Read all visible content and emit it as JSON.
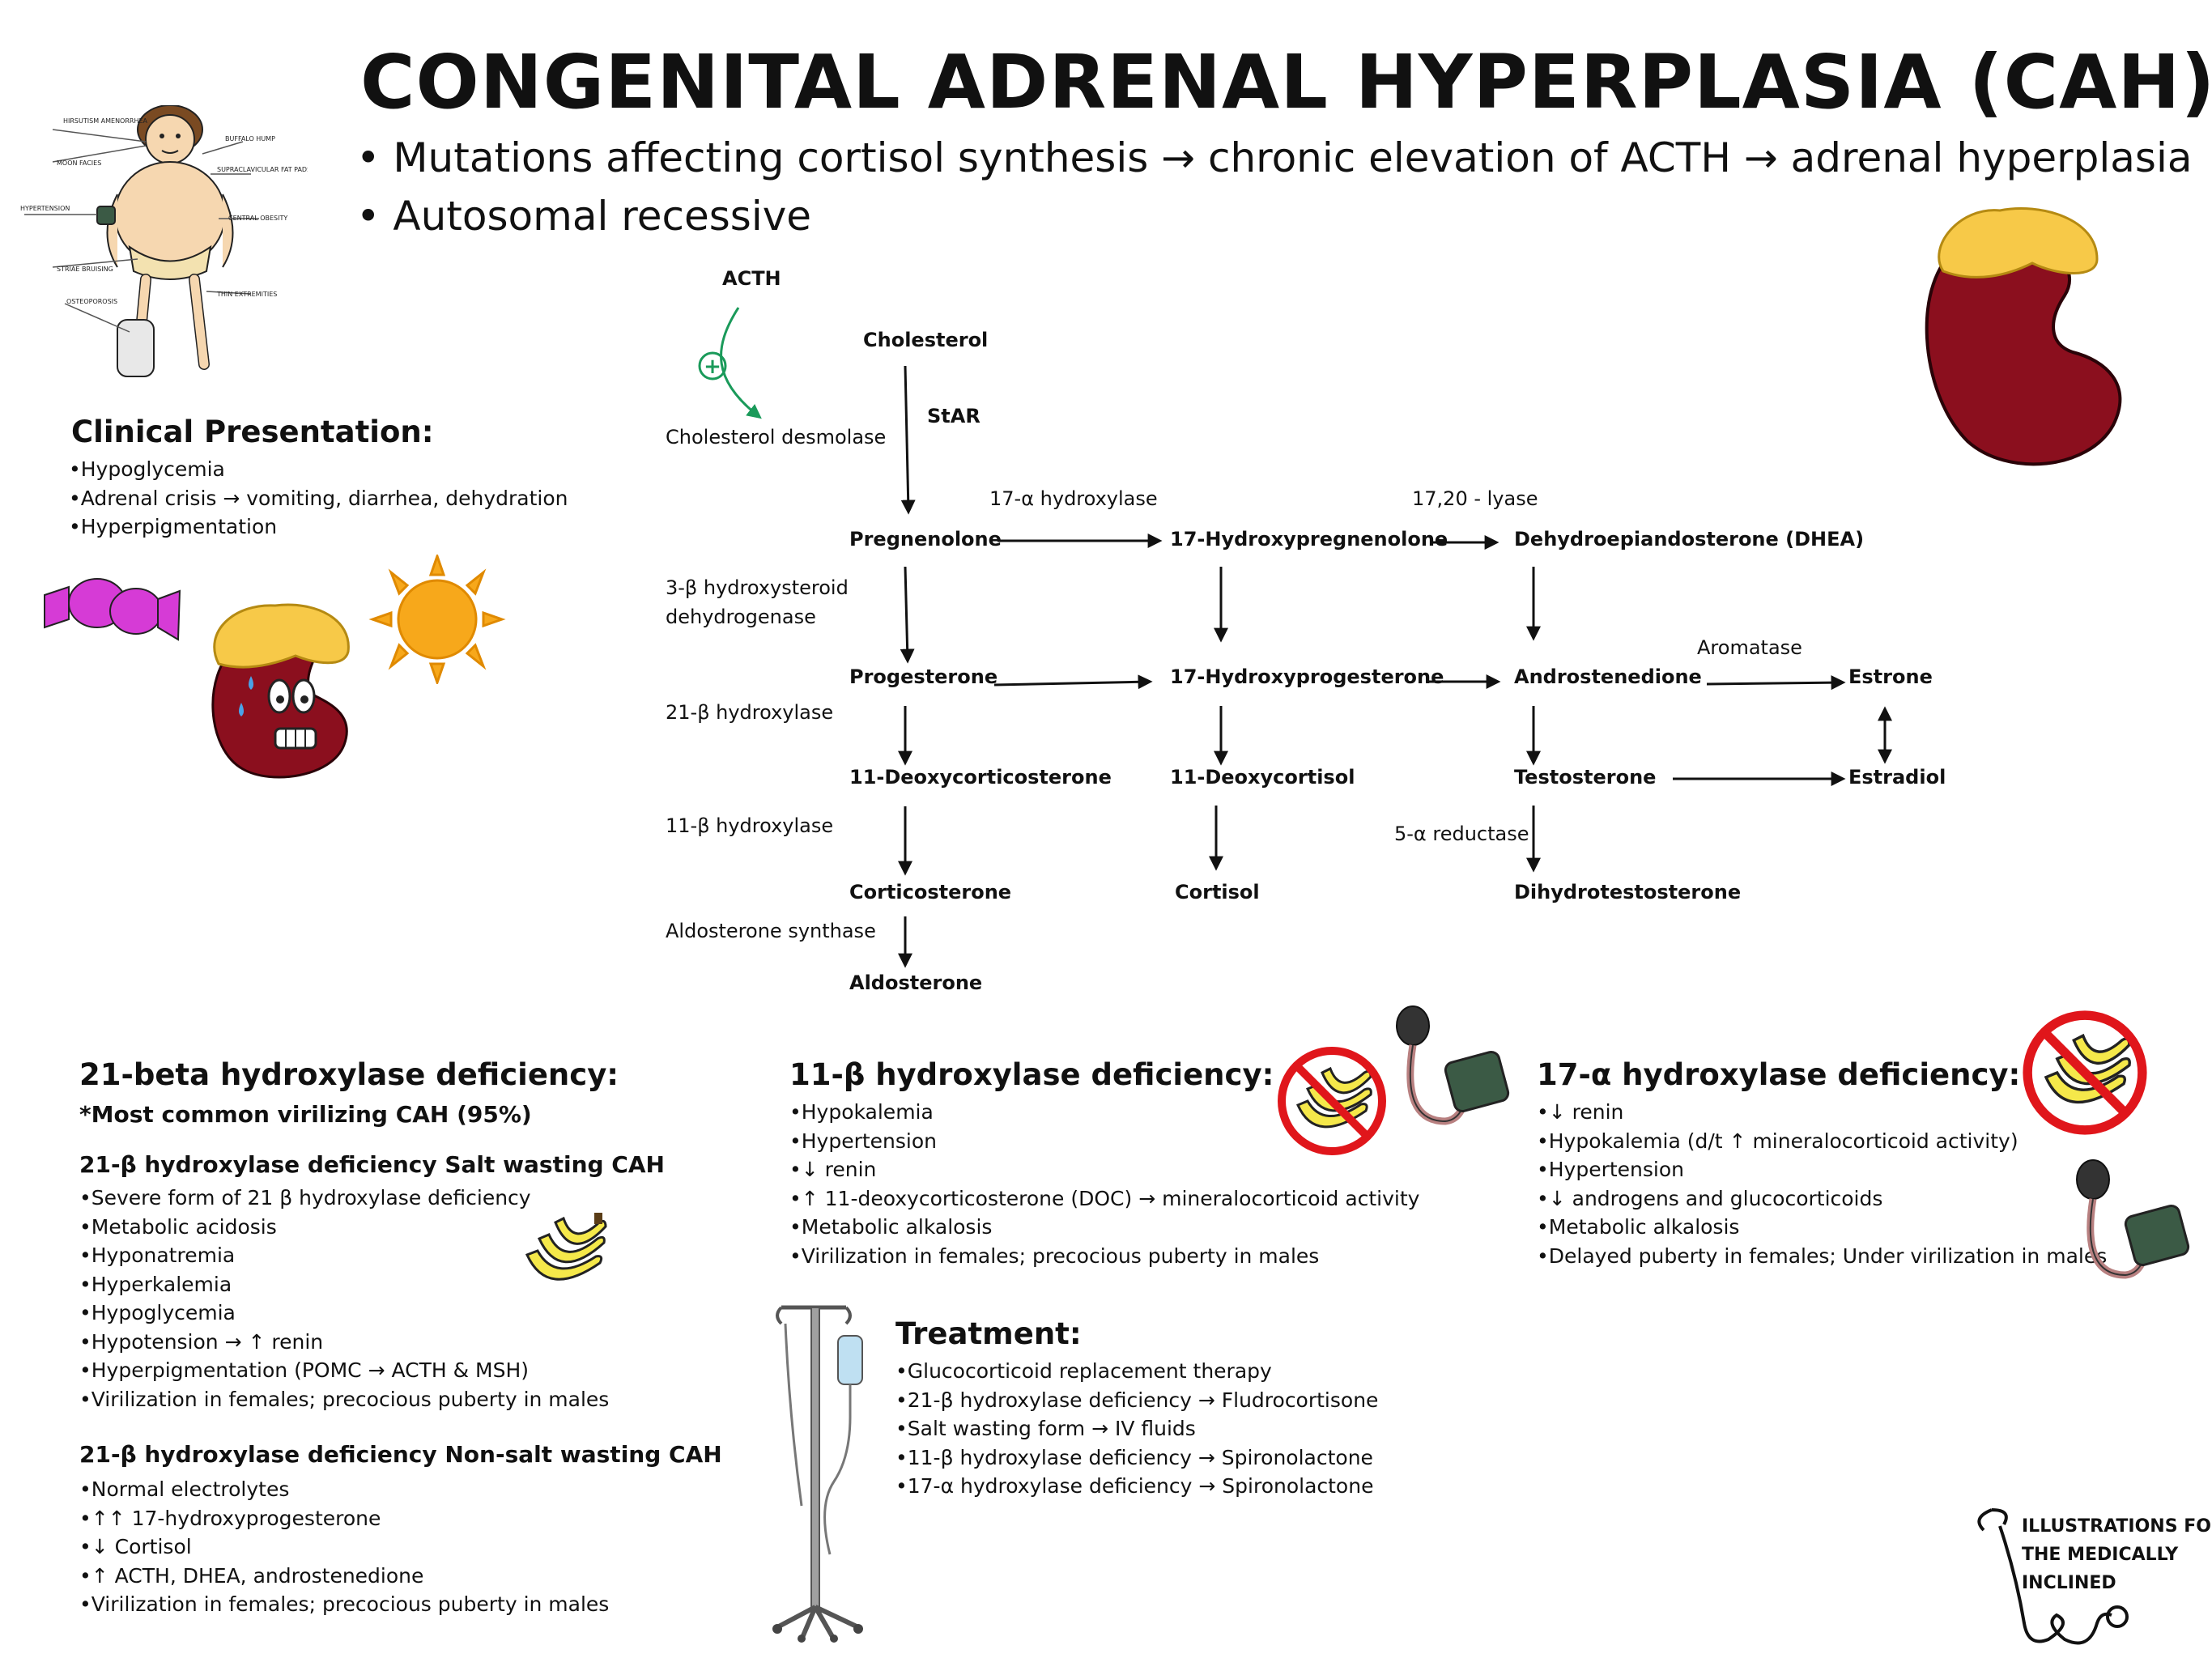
{
  "title": "CONGENITAL ADRENAL HYPERPLASIA (CAH)",
  "subtitle": [
    "• Mutations affecting cortisol synthesis → chronic elevation of ACTH → adrenal hyperplasia",
    "• Autosomal recessive"
  ],
  "cushing_figure_labels": [
    "HIRSUTISM AMENORRHEA",
    "MOON FACIES",
    "HYPERTENSION",
    "STRIAE BRUISING",
    "OSTEOPOROSIS",
    "BUFFALO HUMP",
    "SUPRACLAVICULAR FAT PADS",
    "CENTRAL OBESITY",
    "THIN EXTREMITIES"
  ],
  "clinical": {
    "heading": "Clinical Presentation:",
    "items": [
      "Hypoglycemia",
      "Adrenal crisis → vomiting, diarrhea, dehydration",
      "Hyperpigmentation"
    ]
  },
  "pathway": {
    "acth": "ACTH",
    "plus": "+",
    "nodes": {
      "cholesterol": "Cholesterol",
      "pregnenolone": "Pregnenolone",
      "hydroxypregnenolone": "17-Hydroxypregnenolone",
      "dhea": "Dehydroepiandosterone (DHEA)",
      "progesterone": "Progesterone",
      "hydroxyprogesterone": "17-Hydroxyprogesterone",
      "androstenedione": "Androstenedione",
      "estrone": "Estrone",
      "deoxycorticosterone": "11-Deoxycorticosterone",
      "deoxycortisol": "11-Deoxycortisol",
      "testosterone": "Testosterone",
      "estradiol": "Estradiol",
      "corticosterone": "Corticosterone",
      "cortisol": "Cortisol",
      "dht": "Dihydrotestosterone",
      "aldosterone": "Aldosterone"
    },
    "enzymes": {
      "star": "StAR",
      "desmolase": "Cholesterol desmolase",
      "hydroxylase17": "17-α  hydroxylase",
      "lyase": "17,20 - lyase",
      "hsd_line1": "3-β hydroxysteroid",
      "hsd_line2": "dehydrogenase",
      "aromatase": "Aromatase",
      "hydroxylase21": "21-β hydroxylase",
      "hydroxylase11": "11-β hydroxylase",
      "reductase": "5-α reductase",
      "aldo_synthase": "Aldosterone synthase"
    }
  },
  "def21": {
    "heading": "21-beta hydroxylase deficiency:",
    "note": "*Most common virilizing CAH (95%)",
    "salt_heading": "21-β hydroxylase deficiency Salt wasting CAH",
    "salt_items": [
      "Severe form of 21 β hydroxylase deficiency",
      "Metabolic acidosis",
      "Hyponatremia",
      "Hyperkalemia",
      "Hypoglycemia",
      "Hypotension → ↑ renin",
      "Hyperpigmentation (POMC → ACTH & MSH)",
      "Virilization in females; precocious puberty in males"
    ],
    "nonsalt_heading": "21-β hydroxylase deficiency Non-salt wasting CAH",
    "nonsalt_items": [
      "Normal electrolytes",
      "↑↑ 17-hydroxyprogesterone",
      "↓ Cortisol",
      "↑ ACTH, DHEA, androstenedione",
      "Virilization in females; precocious puberty in males"
    ]
  },
  "def11": {
    "heading": "11-β hydroxylase deficiency:",
    "items": [
      "Hypokalemia",
      "Hypertension",
      "↓ renin",
      "↑ 11-deoxycorticosterone (DOC) → mineralocorticoid activity",
      "Metabolic alkalosis",
      "Virilization in females; precocious puberty in males"
    ]
  },
  "def17": {
    "heading": "17-α hydroxylase deficiency:",
    "items": [
      "↓ renin",
      "Hypokalemia (d/t ↑ mineralocorticoid activity)",
      "Hypertension",
      "↓ androgens and glucocorticoids",
      "Metabolic alkalosis",
      "Delayed puberty in females; Under virilization in males"
    ]
  },
  "treatment": {
    "heading": "Treatment:",
    "items": [
      "Glucocorticoid replacement therapy",
      "21-β hydroxylase deficiency → Fludrocortisone",
      "Salt wasting form → IV fluids",
      "11-β hydroxylase deficiency → Spironolactone",
      "17-α hydroxylase deficiency → Spironolactone"
    ]
  },
  "logo": [
    "ILLUSTRATIONS FOR",
    "THE MEDICALLY",
    "INCLINED"
  ],
  "colors": {
    "kidney": "#8b0f1e",
    "adrenal": "#f7c948",
    "candy": "#d63bd6",
    "sun": "#f7a81b",
    "banana": "#f5e84a",
    "prohibit": "#e0161b",
    "cuff": "#3b5a45",
    "arrow_green": "#1a9a5a"
  }
}
